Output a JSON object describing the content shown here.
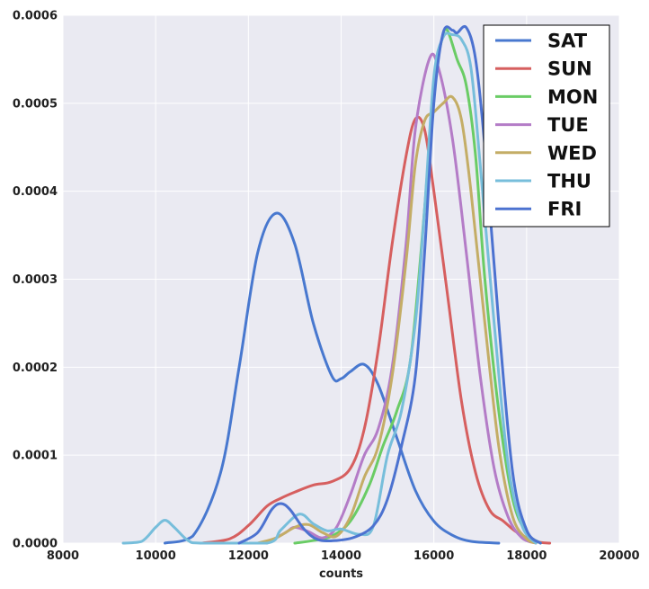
{
  "chart_data": {
    "type": "line",
    "title": "",
    "xlabel": "counts",
    "ylabel": "",
    "xlim": [
      8000,
      20000
    ],
    "ylim": [
      0,
      0.0006
    ],
    "x_ticks": [
      "8000",
      "10000",
      "12000",
      "14000",
      "16000",
      "18000",
      "20000"
    ],
    "y_ticks": [
      "0.0000",
      "0.0001",
      "0.0002",
      "0.0003",
      "0.0004",
      "0.0005",
      "0.0006"
    ],
    "grid": true,
    "legend_position": "top-right",
    "series": [
      {
        "name": "SAT",
        "color": "#4878cf",
        "points": [
          [
            10200,
            0
          ],
          [
            10800,
            8e-06
          ],
          [
            11400,
            8e-05
          ],
          [
            11800,
            0.0002
          ],
          [
            12200,
            0.00033
          ],
          [
            12600,
            0.000375
          ],
          [
            13000,
            0.00034
          ],
          [
            13400,
            0.00025
          ],
          [
            13800,
            0.00019
          ],
          [
            14000,
            0.000187
          ],
          [
            14200,
            0.000195
          ],
          [
            14500,
            0.000203
          ],
          [
            14800,
            0.00018
          ],
          [
            15200,
            0.00012
          ],
          [
            15600,
            6e-05
          ],
          [
            16000,
            2.5e-05
          ],
          [
            16400,
            9e-06
          ],
          [
            16800,
            2e-06
          ],
          [
            17400,
            0
          ]
        ]
      },
      {
        "name": "SUN",
        "color": "#d65f5f",
        "points": [
          [
            11000,
            0
          ],
          [
            11600,
            5e-06
          ],
          [
            12000,
            2e-05
          ],
          [
            12400,
            4.2e-05
          ],
          [
            12700,
            5.1e-05
          ],
          [
            13000,
            5.8e-05
          ],
          [
            13400,
            6.6e-05
          ],
          [
            13800,
            7e-05
          ],
          [
            14200,
            8.5e-05
          ],
          [
            14500,
            0.00013
          ],
          [
            14800,
            0.00022
          ],
          [
            15100,
            0.00034
          ],
          [
            15400,
            0.00044
          ],
          [
            15600,
            0.000482
          ],
          [
            15800,
            0.00047
          ],
          [
            16000,
            0.0004
          ],
          [
            16300,
            0.00028
          ],
          [
            16600,
            0.00016
          ],
          [
            16900,
            8e-05
          ],
          [
            17200,
            3.8e-05
          ],
          [
            17500,
            2.5e-05
          ],
          [
            17800,
            1.2e-05
          ],
          [
            18200,
            2e-06
          ],
          [
            18500,
            0
          ]
        ]
      },
      {
        "name": "MON",
        "color": "#6acc65",
        "points": [
          [
            13000,
            0
          ],
          [
            13400,
            3e-06
          ],
          [
            13800,
            8e-06
          ],
          [
            14200,
            2.5e-05
          ],
          [
            14600,
            6.5e-05
          ],
          [
            14900,
            0.00011
          ],
          [
            15200,
            0.00015
          ],
          [
            15500,
            0.00021
          ],
          [
            15800,
            0.00038
          ],
          [
            16000,
            0.00052
          ],
          [
            16200,
            0.000578
          ],
          [
            16300,
            0.000582
          ],
          [
            16500,
            0.00055
          ],
          [
            16700,
            0.00052
          ],
          [
            16900,
            0.00044
          ],
          [
            17100,
            0.0003
          ],
          [
            17400,
            0.00015
          ],
          [
            17700,
            5e-05
          ],
          [
            18000,
            1.2e-05
          ],
          [
            18300,
            0
          ]
        ]
      },
      {
        "name": "TUE",
        "color": "#b47cc7",
        "points": [
          [
            12400,
            0
          ],
          [
            12800,
            1.2e-05
          ],
          [
            13000,
            1.8e-05
          ],
          [
            13300,
            1.3e-05
          ],
          [
            13600,
            6e-06
          ],
          [
            13900,
            1.8e-05
          ],
          [
            14200,
            5.5e-05
          ],
          [
            14500,
            0.0001
          ],
          [
            14800,
            0.00013
          ],
          [
            15100,
            0.0002
          ],
          [
            15400,
            0.00034
          ],
          [
            15600,
            0.00047
          ],
          [
            15900,
            0.00055
          ],
          [
            16100,
            0.00054
          ],
          [
            16400,
            0.00046
          ],
          [
            16700,
            0.00033
          ],
          [
            17000,
            0.00019
          ],
          [
            17300,
            8.5e-05
          ],
          [
            17600,
            3e-05
          ],
          [
            17900,
            6e-06
          ],
          [
            18200,
            0
          ]
        ]
      },
      {
        "name": "WED",
        "color": "#c4ad66",
        "points": [
          [
            12200,
            0
          ],
          [
            12600,
            6e-06
          ],
          [
            13000,
            1.8e-05
          ],
          [
            13300,
            2.1e-05
          ],
          [
            13600,
            1.2e-05
          ],
          [
            13900,
            8e-06
          ],
          [
            14200,
            3e-05
          ],
          [
            14500,
            7.5e-05
          ],
          [
            14800,
            0.00011
          ],
          [
            15100,
            0.00019
          ],
          [
            15400,
            0.00032
          ],
          [
            15600,
            0.00043
          ],
          [
            15800,
            0.00048
          ],
          [
            16000,
            0.00049
          ],
          [
            16200,
            0.0005
          ],
          [
            16400,
            0.000507
          ],
          [
            16600,
            0.00048
          ],
          [
            16800,
            0.0004
          ],
          [
            17100,
            0.00025
          ],
          [
            17400,
            0.00011
          ],
          [
            17700,
            3e-05
          ],
          [
            18000,
            5e-06
          ],
          [
            18200,
            0
          ]
        ]
      },
      {
        "name": "THU",
        "color": "#77bedb",
        "points": [
          [
            9300,
            0
          ],
          [
            9700,
            2e-06
          ],
          [
            10000,
            1.8e-05
          ],
          [
            10200,
            2.6e-05
          ],
          [
            10400,
            1.8e-05
          ],
          [
            10700,
            3e-06
          ],
          [
            11000,
            0
          ],
          [
            12400,
            0
          ],
          [
            12700,
            1.5e-05
          ],
          [
            13100,
            3.3e-05
          ],
          [
            13400,
            2.2e-05
          ],
          [
            13700,
            1.4e-05
          ],
          [
            14000,
            1.6e-05
          ],
          [
            14400,
            1e-05
          ],
          [
            14700,
            2e-05
          ],
          [
            15000,
            0.0001
          ],
          [
            15300,
            0.00015
          ],
          [
            15600,
            0.00025
          ],
          [
            15800,
            0.00038
          ],
          [
            16000,
            0.00053
          ],
          [
            16200,
            0.000575
          ],
          [
            16400,
            0.000578
          ],
          [
            16600,
            0.000572
          ],
          [
            16800,
            0.00054
          ],
          [
            17000,
            0.00043
          ],
          [
            17300,
            0.00025
          ],
          [
            17600,
            9e-05
          ],
          [
            17900,
            2e-05
          ],
          [
            18200,
            0
          ]
        ]
      },
      {
        "name": "FRI",
        "color": "#4c72d0",
        "points": [
          [
            11800,
            0
          ],
          [
            12200,
            1.2e-05
          ],
          [
            12500,
            3.8e-05
          ],
          [
            12700,
            4.5e-05
          ],
          [
            12900,
            3.8e-05
          ],
          [
            13200,
            1.6e-05
          ],
          [
            13500,
            4e-06
          ],
          [
            13900,
            3e-06
          ],
          [
            14300,
            7e-06
          ],
          [
            14700,
            2e-05
          ],
          [
            15000,
            5e-05
          ],
          [
            15300,
            0.00011
          ],
          [
            15600,
            0.00019
          ],
          [
            15800,
            0.00033
          ],
          [
            16000,
            0.0005
          ],
          [
            16200,
            0.00058
          ],
          [
            16400,
            0.000583
          ],
          [
            16500,
            0.00058
          ],
          [
            16700,
            0.000586
          ],
          [
            16900,
            0.00055
          ],
          [
            17100,
            0.00045
          ],
          [
            17400,
            0.00025
          ],
          [
            17700,
            8e-05
          ],
          [
            18000,
            1.5e-05
          ],
          [
            18300,
            0
          ]
        ]
      }
    ]
  }
}
